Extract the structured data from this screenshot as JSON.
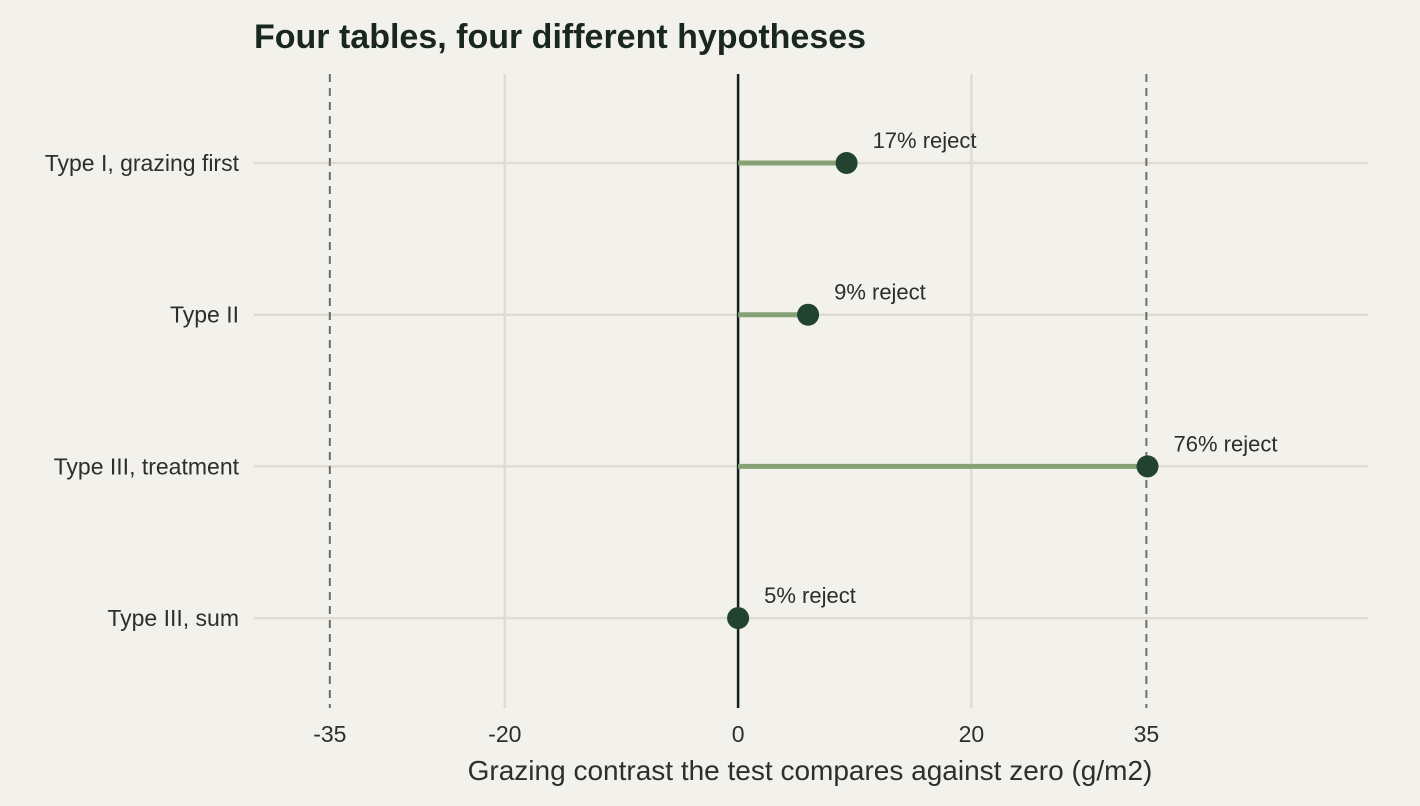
{
  "chart_data": {
    "type": "lollipop",
    "title": "Four tables, four different hypotheses",
    "xlabel": "Grazing contrast the test compares against zero (g/m2)",
    "ylabel": "",
    "xlim": [
      -41.5,
      54
    ],
    "x_ticks": [
      -35,
      -20,
      0,
      20,
      35
    ],
    "x_tick_labels": [
      "-35",
      "-20",
      "0",
      "20",
      "35"
    ],
    "reference_line": 0,
    "dashed_lines": [
      -35,
      35
    ],
    "grid": true,
    "legend": "none",
    "categories": [
      "Type I, grazing first",
      "Type II",
      "Type III, treatment",
      "Type III, sum"
    ],
    "series": [
      {
        "values": [
          9.3,
          6,
          35.1,
          0
        ],
        "labels": [
          "17% reject",
          "9% reject",
          "76% reject",
          "5% reject"
        ]
      }
    ],
    "colors": {
      "background": "#f2f1eb",
      "grid": "#dedcd4",
      "stem": "#86a274",
      "point": "#21432f",
      "zero_line": "#15201a",
      "dashed": "#6b6e6a"
    }
  }
}
